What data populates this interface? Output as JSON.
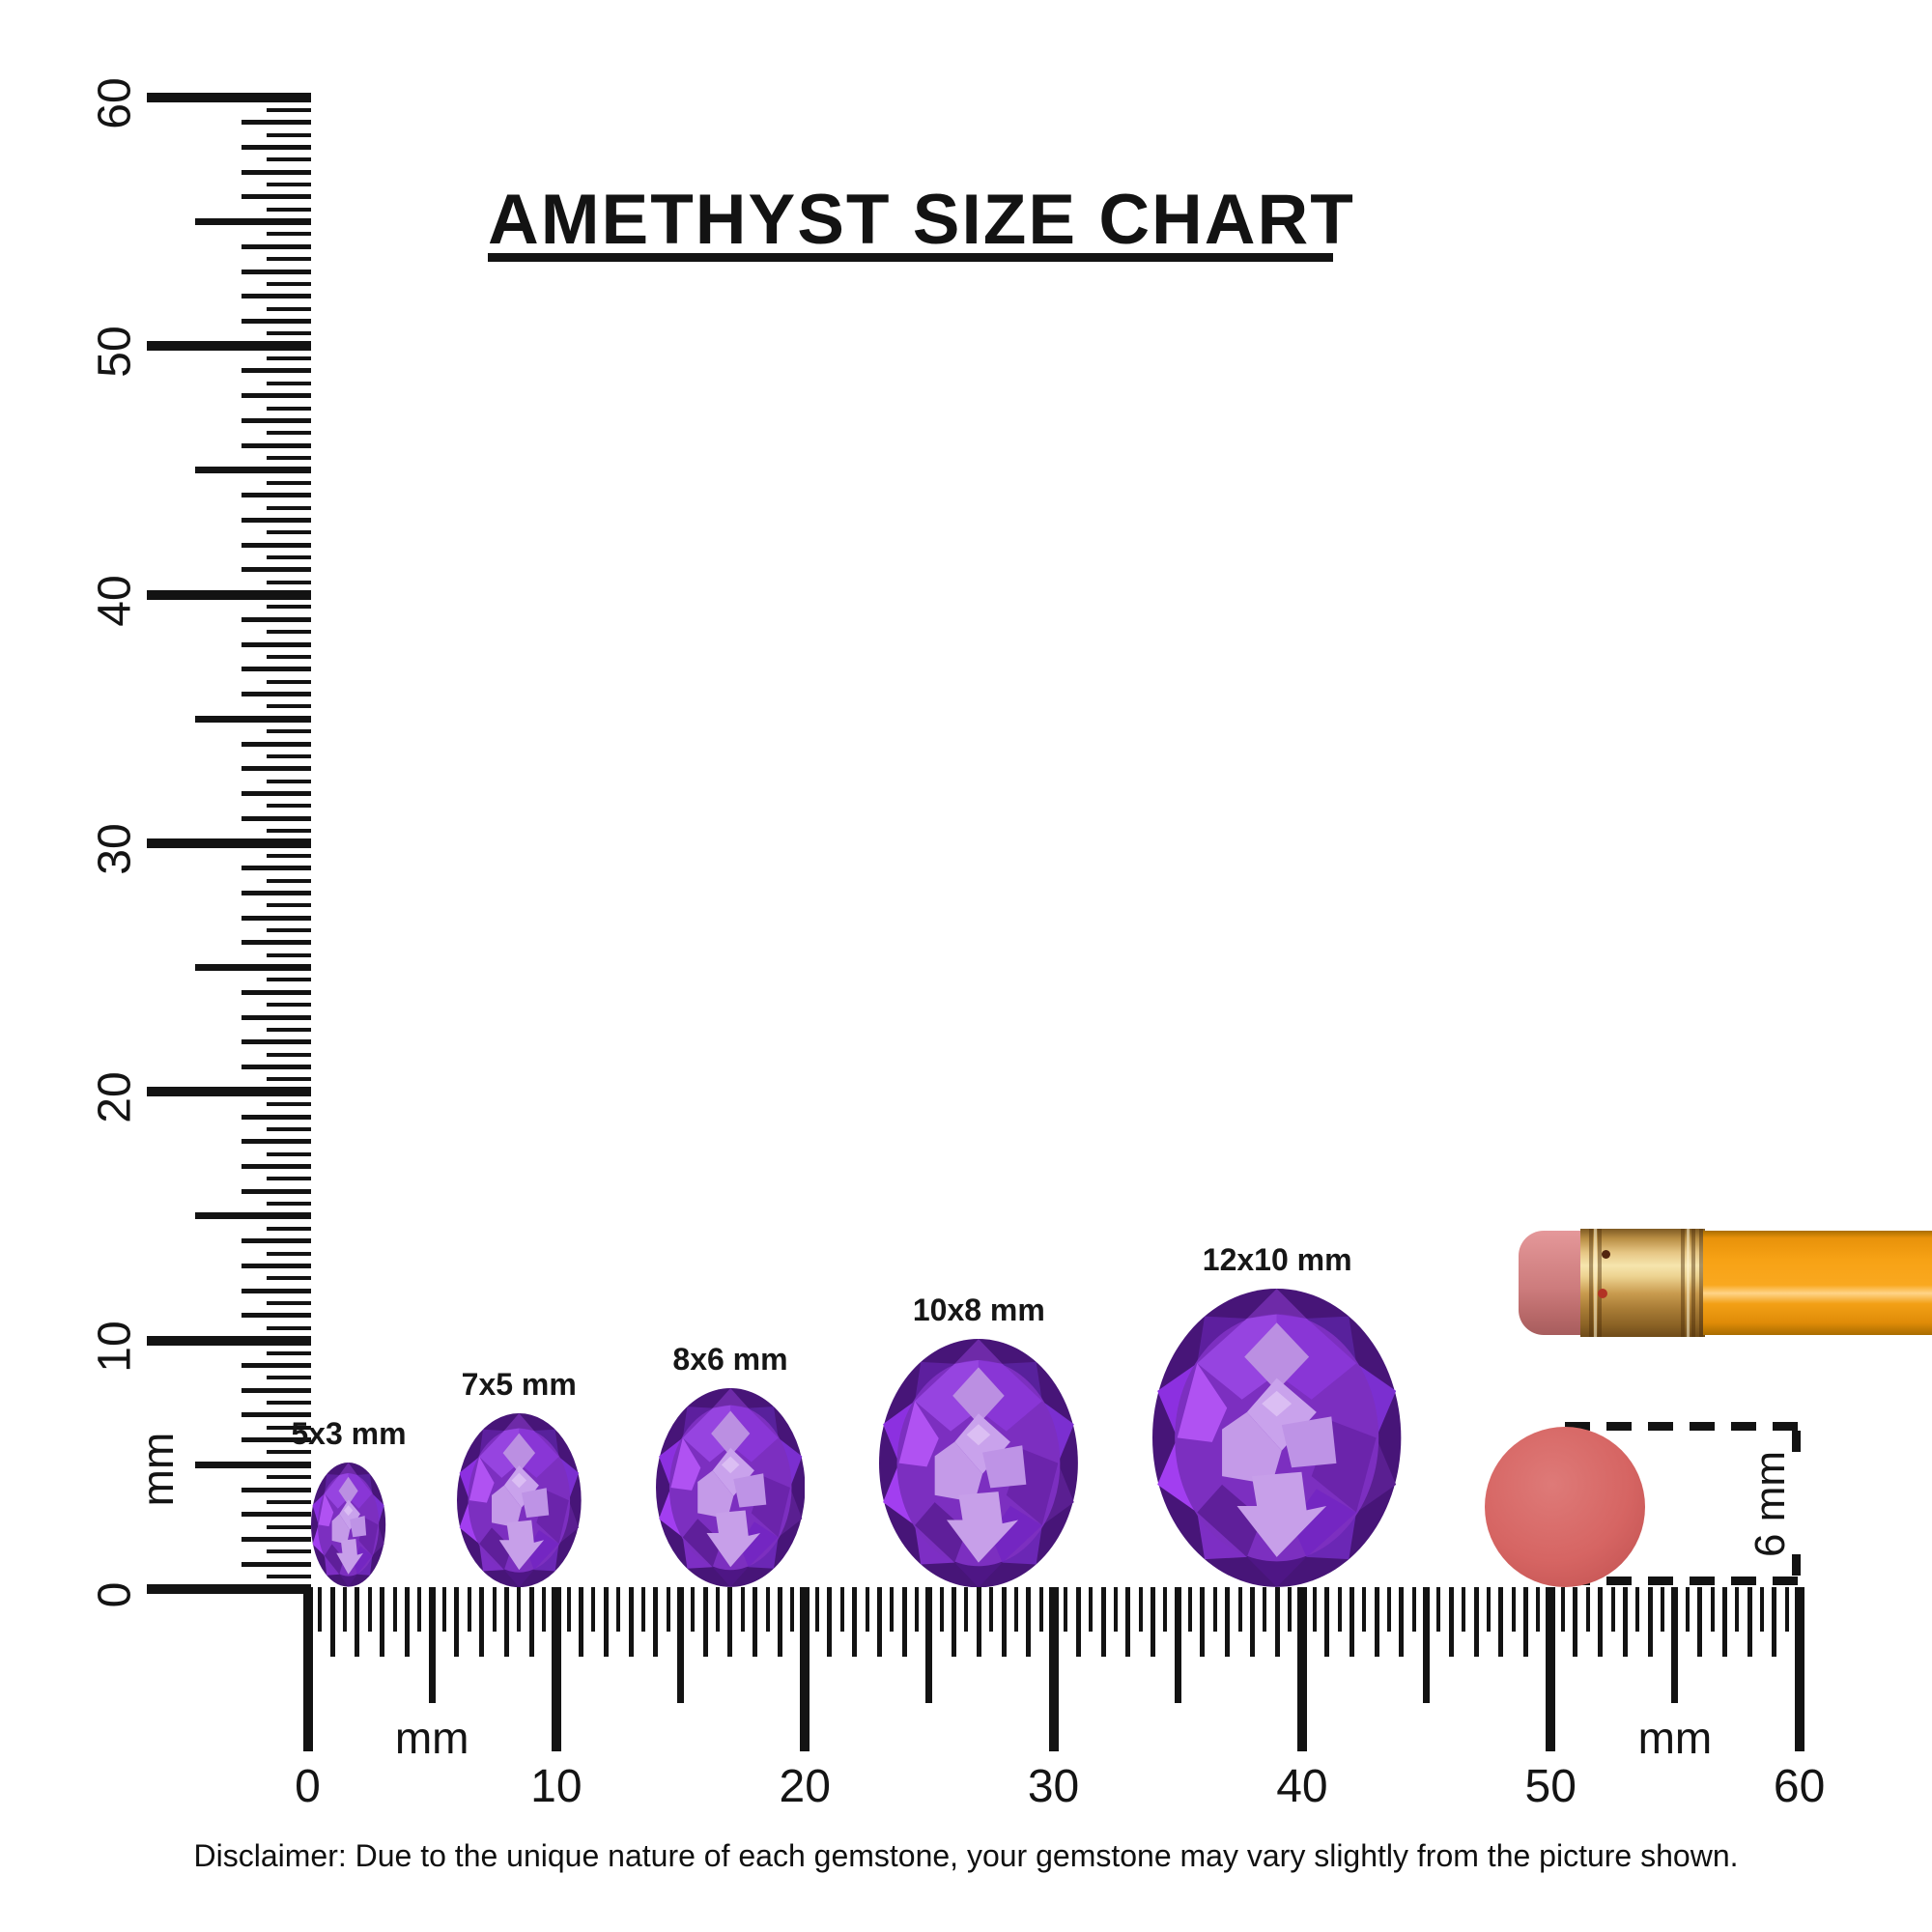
{
  "title": {
    "text": "AMETHYST SIZE CHART"
  },
  "rulers": {
    "unit": "mm",
    "min_mm": 0,
    "max_mm": 60,
    "tick_step_mm": 0.5,
    "major_tick_labels": [
      "0",
      "10",
      "20",
      "30",
      "40",
      "50",
      "60"
    ],
    "horizontal_unit_positions_mm": [
      5,
      55
    ],
    "vertical_unit_position_mm": 4.8
  },
  "gems": [
    {
      "label": "5x3 mm",
      "width_mm": 3,
      "height_mm": 5,
      "center_mm": 1.65
    },
    {
      "label": "7x5 mm",
      "width_mm": 5,
      "height_mm": 7,
      "center_mm": 8.5
    },
    {
      "label": "8x6 mm",
      "width_mm": 6,
      "height_mm": 8,
      "center_mm": 17.0
    },
    {
      "label": "10x8 mm",
      "width_mm": 8,
      "height_mm": 10,
      "center_mm": 27.0
    },
    {
      "label": "12x10 mm",
      "width_mm": 10,
      "height_mm": 12,
      "center_mm": 39.0
    }
  ],
  "comparison": {
    "pencil": {
      "eraser_color": "#cd7c7d",
      "ferrule_color": "#d9a856",
      "body_color": "#f7a215"
    },
    "eraser_top_view": {
      "label": "6 mm",
      "diameter_mm": 6,
      "center_mm": 50.6,
      "color": "#d66563"
    }
  },
  "disclaimer": "Disclaimer: Due to the unique nature of each gemstone, your gemstone may vary slightly from the picture shown.",
  "colors": {
    "ink": "#131313",
    "amethyst_dark": "#471578",
    "amethyst_mid": "#7c2fc0",
    "amethyst_bright": "#a23ef0",
    "amethyst_light": "#c9a2ec"
  }
}
